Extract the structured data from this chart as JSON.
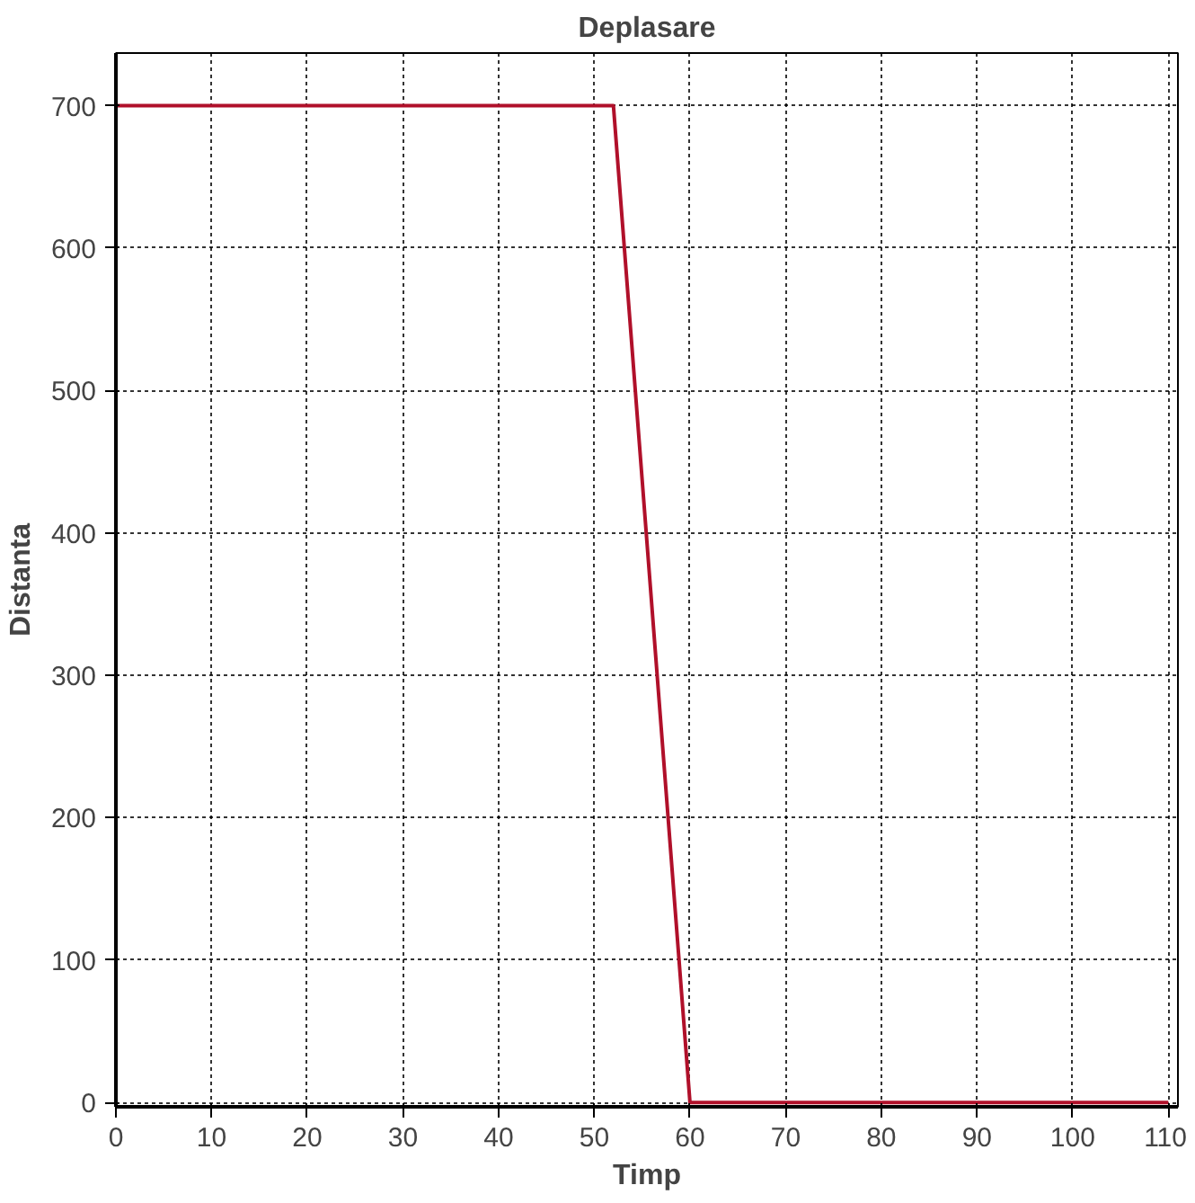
{
  "chart_data": {
    "type": "line",
    "title": "Deplasare",
    "xlabel": "Timp",
    "ylabel": "Distanta",
    "x": [
      0,
      0,
      52,
      60,
      110
    ],
    "series": [
      {
        "color": "#b0102a",
        "values": [
          0,
          700,
          700,
          0,
          0
        ]
      }
    ],
    "xlim": [
      0,
      111
    ],
    "ylim": [
      -3,
      737
    ],
    "xticks": [
      0,
      10,
      20,
      30,
      40,
      50,
      60,
      70,
      80,
      90,
      100,
      110
    ],
    "yticks": [
      0,
      100,
      200,
      300,
      400,
      500,
      600,
      700
    ],
    "grid": true,
    "marker": "none",
    "line_style": "solid"
  }
}
